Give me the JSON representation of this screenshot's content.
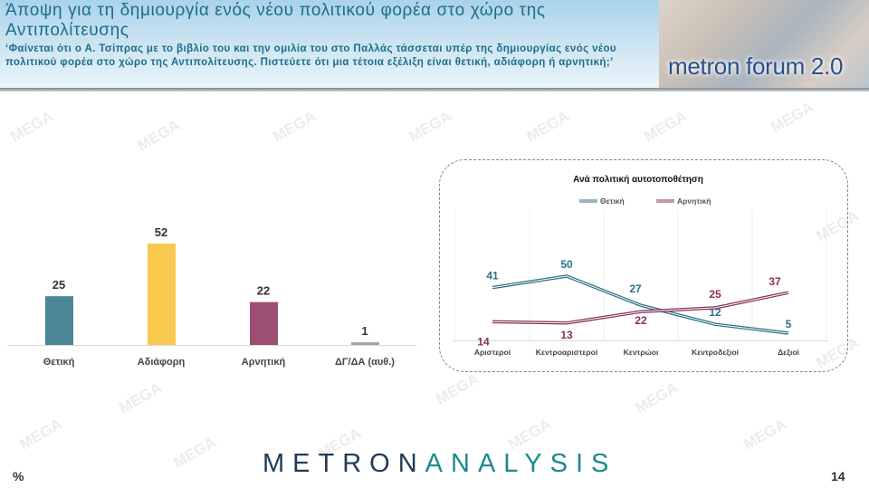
{
  "header": {
    "title": "Άποψη για τη δημιουργία ενός νέου πολιτικού φορέα στο χώρο της Αντιπολίτευσης",
    "subtitle": "‘Φαίνεται ότι ο Α. Τσίπρας με το βιβλίο του και την ομιλία του στο Παλλάς τάσσεται υπέρ της δημιουργίας ενός νέου πολιτικού φορέα στο χώρο της Αντιπολίτευσης. Πιστεύετε ότι μια τέτοια εξέλιξη είναι θετική, αδιάφορη ή αρνητική;’",
    "logo_text": "metron forum 2.0"
  },
  "watermark": "MEGA",
  "footer": {
    "brand_a": "METRON",
    "brand_b": "ANALYSIS",
    "unit": "%",
    "page_number": "14"
  },
  "chart_data": [
    {
      "type": "bar",
      "categories": [
        "Θετική",
        "Αδιάφορη",
        "Αρνητική",
        "ΔΓ/ΔΑ (αυθ.)"
      ],
      "values": [
        25,
        52,
        22,
        1
      ],
      "colors": [
        "#4a8797",
        "#f9c94f",
        "#9c4f72",
        "#a6a6a6"
      ],
      "ylim": [
        0,
        52
      ]
    },
    {
      "type": "line",
      "title": "Ανά πολιτική αυτοτοποθέτηση",
      "categories": [
        "Αριστεροί",
        "Κεντροαριστεροί",
        "Κεντρώοι",
        "Κεντροδεξιοί",
        "Δεξιοί"
      ],
      "series": [
        {
          "name": "Θετική",
          "values": [
            41,
            50,
            27,
            12,
            5
          ],
          "color": "#2e6f86"
        },
        {
          "name": "Αρνητική",
          "values": [
            14,
            13,
            22,
            25,
            37
          ],
          "color": "#8a2f57"
        }
      ],
      "legend": "top",
      "grid": "vertical"
    }
  ]
}
